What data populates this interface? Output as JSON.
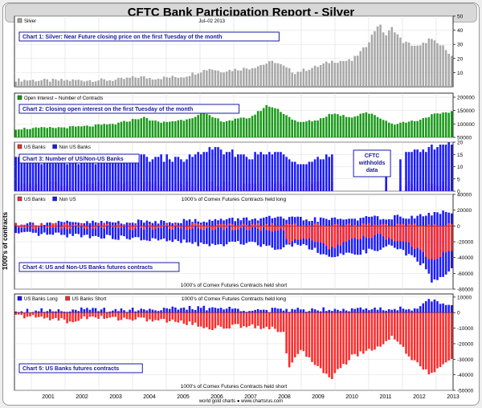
{
  "title": "CFTC Bank Participation Report - Silver",
  "y_axis_title": "1000's of contracts",
  "footer": "world gold charts ● www.chartsrus.com",
  "colors": {
    "gray": "#a8a8a8",
    "green": "#1a9a1a",
    "red": "#ff2a2a",
    "blue": "#1a1aff",
    "label_border": "#1a1aaa"
  },
  "years": [
    "2001",
    "2002",
    "2003",
    "2004",
    "2005",
    "2006",
    "2007",
    "2008",
    "2009",
    "2010",
    "2011",
    "2012",
    "2013"
  ],
  "chart_data": [
    {
      "type": "bar",
      "title": "Chart 1: Silver: Near Future closing price on the first Tuesday of the month",
      "legend": [
        "Silver"
      ],
      "date_label": "Jul–02 2013",
      "yticks": [
        "50",
        "40",
        "30",
        "20",
        "10"
      ],
      "ylim": [
        0,
        50
      ],
      "x_start": 2000.5,
      "x_end": 2013.5,
      "months": 154,
      "series": [
        {
          "name": "Silver",
          "color": "gray",
          "anchors": [
            [
              2000.5,
              4.9
            ],
            [
              2001.5,
              4.4
            ],
            [
              2002.5,
              4.6
            ],
            [
              2003.5,
              4.8
            ],
            [
              2004.2,
              7.0
            ],
            [
              2004.6,
              6.0
            ],
            [
              2005.5,
              7.2
            ],
            [
              2006.3,
              13.0
            ],
            [
              2006.6,
              11.0
            ],
            [
              2007.5,
              13.4
            ],
            [
              2008.2,
              18.0
            ],
            [
              2008.8,
              10.0
            ],
            [
              2009.5,
              14.5
            ],
            [
              2009.9,
              18.0
            ],
            [
              2010.5,
              18.5
            ],
            [
              2010.9,
              28.0
            ],
            [
              2011.3,
              45.0
            ],
            [
              2011.5,
              36.0
            ],
            [
              2011.7,
              42.0
            ],
            [
              2012.0,
              32.0
            ],
            [
              2012.5,
              28.0
            ],
            [
              2012.8,
              34.0
            ],
            [
              2013.0,
              31.0
            ],
            [
              2013.3,
              27.0
            ],
            [
              2013.5,
              19.8
            ]
          ]
        }
      ]
    },
    {
      "type": "bar",
      "title": "Chart 2: Closing open interest on the first Tuesday of the month",
      "legend": [
        "Open Interest – Number of Contracts"
      ],
      "yticks": [
        "200000",
        "150000",
        "100000",
        "50000"
      ],
      "ylim": [
        50000,
        215000
      ],
      "x_start": 2000.5,
      "x_end": 2013.5,
      "months": 154,
      "series": [
        {
          "name": "Open Interest – Number of Contracts",
          "color": "green",
          "anchors": [
            [
              2000.5,
              82000
            ],
            [
              2001.5,
              85000
            ],
            [
              2002.5,
              90000
            ],
            [
              2003.5,
              100000
            ],
            [
              2004.3,
              125000
            ],
            [
              2004.8,
              105000
            ],
            [
              2005.5,
              115000
            ],
            [
              2006.1,
              138000
            ],
            [
              2006.7,
              110000
            ],
            [
              2007.5,
              125000
            ],
            [
              2008.0,
              170000
            ],
            [
              2008.3,
              155000
            ],
            [
              2008.9,
              105000
            ],
            [
              2009.5,
              115000
            ],
            [
              2009.9,
              140000
            ],
            [
              2010.5,
              125000
            ],
            [
              2010.9,
              145000
            ],
            [
              2011.3,
              125000
            ],
            [
              2011.7,
              100000
            ],
            [
              2012.0,
              105000
            ],
            [
              2012.5,
              115000
            ],
            [
              2012.9,
              135000
            ],
            [
              2013.3,
              140000
            ],
            [
              2013.5,
              150000
            ]
          ]
        }
      ]
    },
    {
      "type": "bar",
      "title": "Chart 3: Number of US/Non-US Banks",
      "legend": [
        "US Banks",
        "Non US Banks"
      ],
      "annotation": [
        "CFTC",
        "withholds",
        "data"
      ],
      "yticks": [
        "20",
        "15",
        "10",
        "5",
        "0"
      ],
      "ylim": [
        0,
        20
      ],
      "x_start": 2000.5,
      "x_end": 2013.5,
      "months": 154,
      "gaps": [
        [
          2009.95,
          2012.05
        ]
      ],
      "isolated": [
        2011.55,
        2011.95
      ],
      "series": [
        {
          "name": "US Banks",
          "color": "red",
          "anchors": [
            [
              2000.5,
              3
            ],
            [
              2013.5,
              3
            ]
          ]
        },
        {
          "name": "Non US Banks",
          "color": "blue",
          "anchors": [
            [
              2000.5,
              13
            ],
            [
              2002.5,
              12
            ],
            [
              2004.0,
              14
            ],
            [
              2005.5,
              13
            ],
            [
              2006.3,
              17
            ],
            [
              2007.5,
              14
            ],
            [
              2008.2,
              16
            ],
            [
              2009.0,
              12
            ],
            [
              2009.9,
              14
            ],
            [
              2011.55,
              8
            ],
            [
              2011.95,
              12
            ],
            [
              2012.1,
              17
            ],
            [
              2012.6,
              16
            ],
            [
              2013.0,
              19
            ],
            [
              2013.2,
              19
            ]
          ]
        }
      ]
    },
    {
      "type": "bar",
      "title": "Chart 4: US and Non-US Banks futures contracts",
      "legend": [
        "US Banks",
        "Non US"
      ],
      "top_note": "1000's of Comex Futures Contracts held long",
      "bottom_note": "1000's of Comex Futures Contracts held short",
      "yticks": [
        "40000",
        "20000",
        "0",
        "-20000",
        "-40000",
        "-60000",
        "-80000"
      ],
      "ylim": [
        -80000,
        40000
      ],
      "x_start": 2000.5,
      "x_end": 2013.5,
      "months": 154,
      "series": [
        {
          "name": "Non US long",
          "color": "blue",
          "anchors": [
            [
              2000.5,
              3000
            ],
            [
              2004.0,
              5000
            ],
            [
              2006.3,
              7000
            ],
            [
              2008.0,
              10000
            ],
            [
              2009.5,
              8000
            ],
            [
              2011.0,
              10000
            ],
            [
              2012.5,
              12000
            ],
            [
              2013.2,
              18000
            ],
            [
              2013.5,
              16000
            ]
          ]
        },
        {
          "name": "US Banks long",
          "color": "red",
          "anchors": [
            [
              2000.5,
              1000
            ],
            [
              2011.5,
              800
            ],
            [
              2013.5,
              1500
            ]
          ]
        },
        {
          "name": "Non US short",
          "color": "blue",
          "anchors": [
            [
              2000.5,
              -10000
            ],
            [
              2002.5,
              -12000
            ],
            [
              2004.0,
              -16000
            ],
            [
              2005.5,
              -20000
            ],
            [
              2006.3,
              -25000
            ],
            [
              2007.5,
              -20000
            ],
            [
              2008.2,
              -28000
            ],
            [
              2009.0,
              -22000
            ],
            [
              2009.9,
              -40000
            ],
            [
              2010.5,
              -35000
            ],
            [
              2011.3,
              -30000
            ],
            [
              2011.7,
              -25000
            ],
            [
              2012.3,
              -40000
            ],
            [
              2012.7,
              -52000
            ],
            [
              2012.85,
              -72000
            ],
            [
              2013.1,
              -65000
            ],
            [
              2013.5,
              -55000
            ]
          ]
        },
        {
          "name": "US Banks short",
          "color": "red",
          "anchors": [
            [
              2000.5,
              -1500
            ],
            [
              2007.5,
              -3000
            ],
            [
              2008.5,
              -6000
            ],
            [
              2008.6,
              -20000
            ],
            [
              2009.0,
              -15000
            ],
            [
              2009.9,
              -28000
            ],
            [
              2010.5,
              -18000
            ],
            [
              2011.3,
              -12000
            ],
            [
              2012.3,
              -25000
            ],
            [
              2012.85,
              -42000
            ],
            [
              2013.1,
              -38000
            ],
            [
              2013.5,
              -30000
            ]
          ]
        }
      ]
    },
    {
      "type": "bar",
      "title": "Chart 5: US Banks futures contracts",
      "legend": [
        "US Banks Long",
        "US Banks Short"
      ],
      "top_note": "1000's of Comex Futures Contracts held long",
      "bottom_note": "1000's of Comex Futures Contracts held short",
      "yticks": [
        "10000",
        "0",
        "-10000",
        "-20000",
        "-30000",
        "-40000",
        "-50000"
      ],
      "ylim": [
        -50000,
        12000
      ],
      "x_start": 2000.5,
      "x_end": 2013.5,
      "months": 154,
      "series": [
        {
          "name": "US Banks Long",
          "color": "blue",
          "anchors": [
            [
              2000.5,
              1500
            ],
            [
              2004.0,
              2000
            ],
            [
              2006.3,
              3000
            ],
            [
              2008.0,
              1500
            ],
            [
              2010.0,
              2500
            ],
            [
              2011.0,
              2000
            ],
            [
              2012.5,
              3000
            ],
            [
              2012.8,
              8000
            ],
            [
              2013.2,
              6000
            ],
            [
              2013.5,
              5000
            ]
          ]
        },
        {
          "name": "US Banks Short",
          "color": "red",
          "anchors": [
            [
              2000.5,
              -2000
            ],
            [
              2001.8,
              -4000
            ],
            [
              2002.2,
              -7000
            ],
            [
              2002.5,
              -3000
            ],
            [
              2004.0,
              -4000
            ],
            [
              2005.5,
              -6000
            ],
            [
              2006.3,
              -10000
            ],
            [
              2007.5,
              -8000
            ],
            [
              2008.5,
              -12000
            ],
            [
              2008.6,
              -35000
            ],
            [
              2009.0,
              -25000
            ],
            [
              2009.9,
              -42000
            ],
            [
              2010.5,
              -28000
            ],
            [
              2011.3,
              -22000
            ],
            [
              2011.7,
              -15000
            ],
            [
              2012.3,
              -30000
            ],
            [
              2012.85,
              -40000
            ],
            [
              2013.1,
              -36000
            ],
            [
              2013.5,
              -28000
            ]
          ]
        }
      ]
    }
  ]
}
